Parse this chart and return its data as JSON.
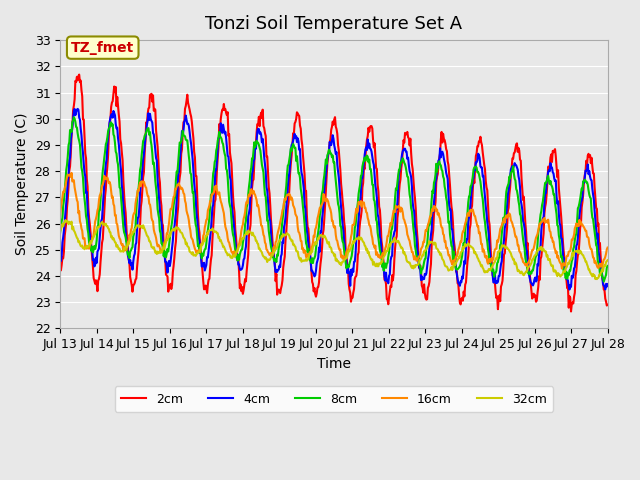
{
  "title": "Tonzi Soil Temperature Set A",
  "xlabel": "Time",
  "ylabel": "Soil Temperature (C)",
  "ylim": [
    22.0,
    33.0
  ],
  "yticks": [
    22.0,
    23.0,
    24.0,
    25.0,
    26.0,
    27.0,
    28.0,
    29.0,
    30.0,
    31.0,
    32.0,
    33.0
  ],
  "background_color": "#e8e8e8",
  "plot_bg_color": "#e8e8e8",
  "grid_color": "#ffffff",
  "legend_label": "TZ_fmet",
  "legend_box_color": "#ffffcc",
  "legend_box_edge": "#8b8b00",
  "series_labels": [
    "2cm",
    "4cm",
    "8cm",
    "16cm",
    "32cm"
  ],
  "series_colors": [
    "#ff0000",
    "#0000ff",
    "#00cc00",
    "#ff8800",
    "#cccc00"
  ],
  "series_linewidths": [
    1.5,
    1.5,
    1.5,
    1.5,
    1.5
  ],
  "title_fontsize": 13,
  "axis_label_fontsize": 10,
  "tick_fontsize": 9
}
